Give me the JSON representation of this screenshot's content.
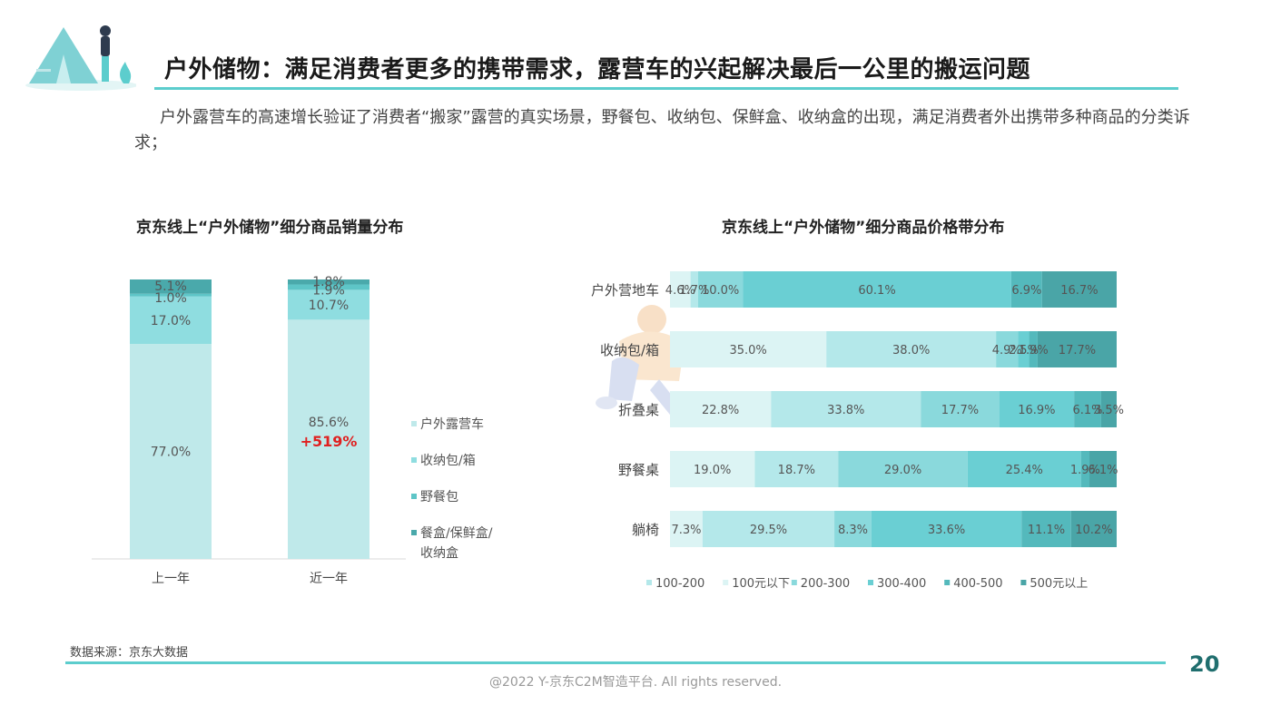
{
  "header": {
    "title": "户外储物：满足消费者更多的携带需求，露营车的兴起解决最后一公里的搬运问题"
  },
  "intro": "户外露营车的高速增长验证了消费者“搬家”露营的真实场景，野餐包、收纳包、保鲜盒、收纳盒的出现，满足消费者外出携带多种商品的分类诉求；",
  "colors": {
    "accent": "#5ccdcd",
    "page_number": "#1f6e6e",
    "highlight_red": "#e02020"
  },
  "chart_data": [
    {
      "type": "bar",
      "stacked": true,
      "percent": true,
      "title": "京东线上“户外储物”细分商品销量分布",
      "categories": [
        "上一年",
        "近一年"
      ],
      "series": [
        {
          "name": "户外露营车",
          "values": [
            77.0,
            85.6
          ],
          "labels": [
            "77.0%",
            "85.6%"
          ],
          "color": "#bfe9ea"
        },
        {
          "name": "收纳包/箱",
          "values": [
            17.0,
            10.7
          ],
          "labels": [
            "17.0%",
            "10.7%"
          ],
          "color": "#8fdde0"
        },
        {
          "name": "野餐包",
          "values": [
            1.0,
            1.9
          ],
          "labels": [
            "1.0%",
            "1.9%"
          ],
          "color": "#5ec5c7"
        },
        {
          "name": "餐盒/保鲜盒/收纳盒",
          "values": [
            5.1,
            1.8
          ],
          "labels": [
            "5.1%",
            "1.8%"
          ],
          "color": "#4aa9ab"
        }
      ],
      "annotation": {
        "category": "近一年",
        "text": "+519%"
      },
      "legend": "right"
    },
    {
      "type": "bar",
      "orientation": "horizontal",
      "stacked": true,
      "percent": true,
      "title": "京东线上“户外储物”细分商品价格带分布",
      "categories": [
        "户外营地车",
        "收纳包/箱",
        "折叠桌",
        "野餐桌",
        "躺椅"
      ],
      "series": [
        {
          "name": "100元以下",
          "values": [
            4.6,
            35.0,
            22.8,
            19.0,
            7.3
          ],
          "labels": [
            "4.6%",
            "35.0%",
            "22.8%",
            "19.0%",
            "7.3%"
          ],
          "color": "#dcf4f4"
        },
        {
          "name": "100-200",
          "values": [
            1.7,
            38.0,
            33.8,
            18.7,
            29.5
          ],
          "labels": [
            "1.7%",
            "38.0%",
            "33.8%",
            "18.7%",
            "29.5%"
          ],
          "color": "#b4e8ea"
        },
        {
          "name": "200-300",
          "values": [
            10.0,
            4.9,
            17.7,
            29.0,
            8.3
          ],
          "labels": [
            "10.0%",
            "4.9%",
            "17.7%",
            "29.0%",
            "8.3%"
          ],
          "color": "#8ad9dc"
        },
        {
          "name": "300-400",
          "values": [
            60.1,
            2.5,
            16.9,
            25.4,
            33.6
          ],
          "labels": [
            "60.1%",
            "2.5%",
            "16.9%",
            "25.4%",
            "33.6%"
          ],
          "color": "#6acfd3"
        },
        {
          "name": "400-500",
          "values": [
            6.9,
            1.9,
            6.1,
            1.9,
            11.1
          ],
          "labels": [
            "6.9%",
            "1.9%",
            "6.1%",
            "1.9%",
            "11.1%"
          ],
          "color": "#54b9bc"
        },
        {
          "name": "500元以上",
          "values": [
            16.7,
            17.7,
            3.5,
            6.1,
            10.2
          ],
          "labels": [
            "16.7%",
            "17.7%",
            "3.5%",
            "6.1%",
            "10.2%"
          ],
          "color": "#4aa5a7"
        }
      ],
      "legend_order": [
        "100-200",
        "100元以下",
        "200-300",
        "300-400",
        "400-500",
        "500元以上"
      ],
      "legend": "bottom"
    }
  ],
  "footer": {
    "source": "数据来源：京东大数据",
    "page_number": "20",
    "copyright": "@2022 Y-京东C2M智造平台. All rights reserved."
  }
}
